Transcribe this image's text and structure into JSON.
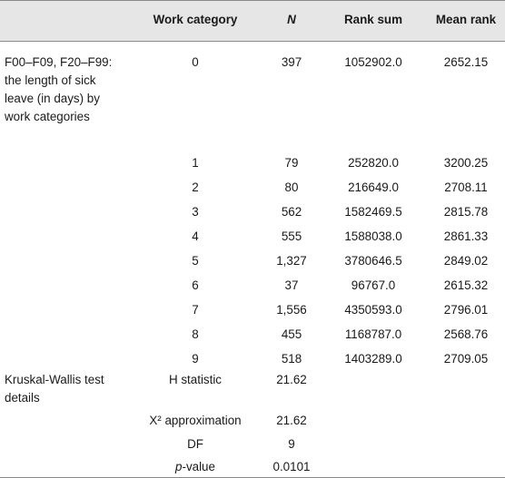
{
  "header": {
    "work_category": "Work category",
    "n": "N",
    "rank_sum": "Rank sum",
    "mean_rank": "Mean rank"
  },
  "group_label": "F00–F09, F20–F99: the length of sick leave (in days) by work categories",
  "rows": [
    {
      "cat": "0",
      "n": "397",
      "rank_sum": "1052902.0",
      "mean_rank": "2652.15"
    },
    {
      "cat": "1",
      "n": "79",
      "rank_sum": "252820.0",
      "mean_rank": "3200.25"
    },
    {
      "cat": "2",
      "n": "80",
      "rank_sum": "216649.0",
      "mean_rank": "2708.11"
    },
    {
      "cat": "3",
      "n": "562",
      "rank_sum": "1582469.5",
      "mean_rank": "2815.78"
    },
    {
      "cat": "4",
      "n": "555",
      "rank_sum": "1588038.0",
      "mean_rank": "2861.33"
    },
    {
      "cat": "5",
      "n": "1,327",
      "rank_sum": "3780646.5",
      "mean_rank": "2849.02"
    },
    {
      "cat": "6",
      "n": "37",
      "rank_sum": "96767.0",
      "mean_rank": "2615.32"
    },
    {
      "cat": "7",
      "n": "1,556",
      "rank_sum": "4350593.0",
      "mean_rank": "2796.01"
    },
    {
      "cat": "8",
      "n": "455",
      "rank_sum": "1168787.0",
      "mean_rank": "2568.76"
    },
    {
      "cat": "9",
      "n": "518",
      "rank_sum": "1403289.0",
      "mean_rank": "2709.05"
    }
  ],
  "test": {
    "label": "Kruskal-Wallis test details",
    "h_label": "H statistic",
    "h_value": "21.62",
    "x2_label": "X² approximation",
    "x2_value": "21.62",
    "df_label": "DF",
    "df_value": "9",
    "p_label_italic": "p",
    "p_label_rest": "-value",
    "p_value": "0.0101"
  }
}
